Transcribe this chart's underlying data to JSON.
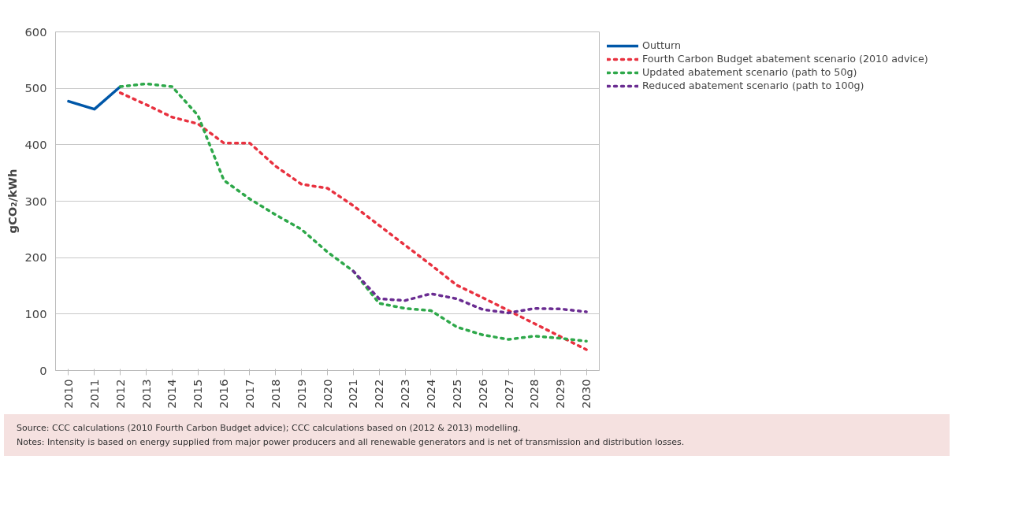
{
  "chart_data": {
    "type": "line",
    "ylabel": "gCO₂/kWh",
    "categories": [
      "2010",
      "2011",
      "2012",
      "2013",
      "2014",
      "2015",
      "2016",
      "2017",
      "2018",
      "2019",
      "2020",
      "2021",
      "2022",
      "2023",
      "2024",
      "2025",
      "2026",
      "2027",
      "2028",
      "2029",
      "2030"
    ],
    "ylim": [
      0,
      600
    ],
    "yticks": [
      0,
      100,
      200,
      300,
      400,
      500,
      600
    ],
    "grid": "y",
    "legend": "right",
    "marker": "none",
    "series": [
      {
        "name": "Outturn",
        "color": "#0057a8",
        "line_style": "solid",
        "values": [
          477,
          463,
          503,
          null,
          null,
          null,
          null,
          null,
          null,
          null,
          null,
          null,
          null,
          null,
          null,
          null,
          null,
          null,
          null,
          null,
          null
        ]
      },
      {
        "name": "Fourth Carbon Budget abatement scenario (2010 advice)",
        "color": "#e8313f",
        "line_style": "dashed",
        "values": [
          null,
          null,
          492,
          471,
          449,
          437,
          403,
          403,
          362,
          330,
          323,
          292,
          257,
          222,
          187,
          151,
          129,
          106,
          83,
          60,
          37
        ]
      },
      {
        "name": "Updated abatement scenario (path to 50g)",
        "color": "#2ea84a",
        "line_style": "dashed",
        "values": [
          null,
          null,
          503,
          508,
          503,
          452,
          337,
          304,
          276,
          250,
          210,
          176,
          119,
          110,
          106,
          77,
          63,
          55,
          61,
          57,
          52
        ]
      },
      {
        "name": "Reduced abatement scenario (path to 100g)",
        "color": "#6a2c91",
        "line_style": "dashed",
        "values": [
          null,
          null,
          null,
          null,
          null,
          null,
          null,
          null,
          null,
          null,
          null,
          176,
          127,
          124,
          136,
          127,
          108,
          102,
          110,
          109,
          104
        ]
      }
    ],
    "annotations": [
      "Source: CCC calculations (2010 Fourth Carbon Budget advice); CCC calculations based on (2012 & 2013) modelling.",
      "Notes: Intensity is based on energy supplied from major power producers and all renewable generators and is net of transmission and distribution losses."
    ]
  }
}
